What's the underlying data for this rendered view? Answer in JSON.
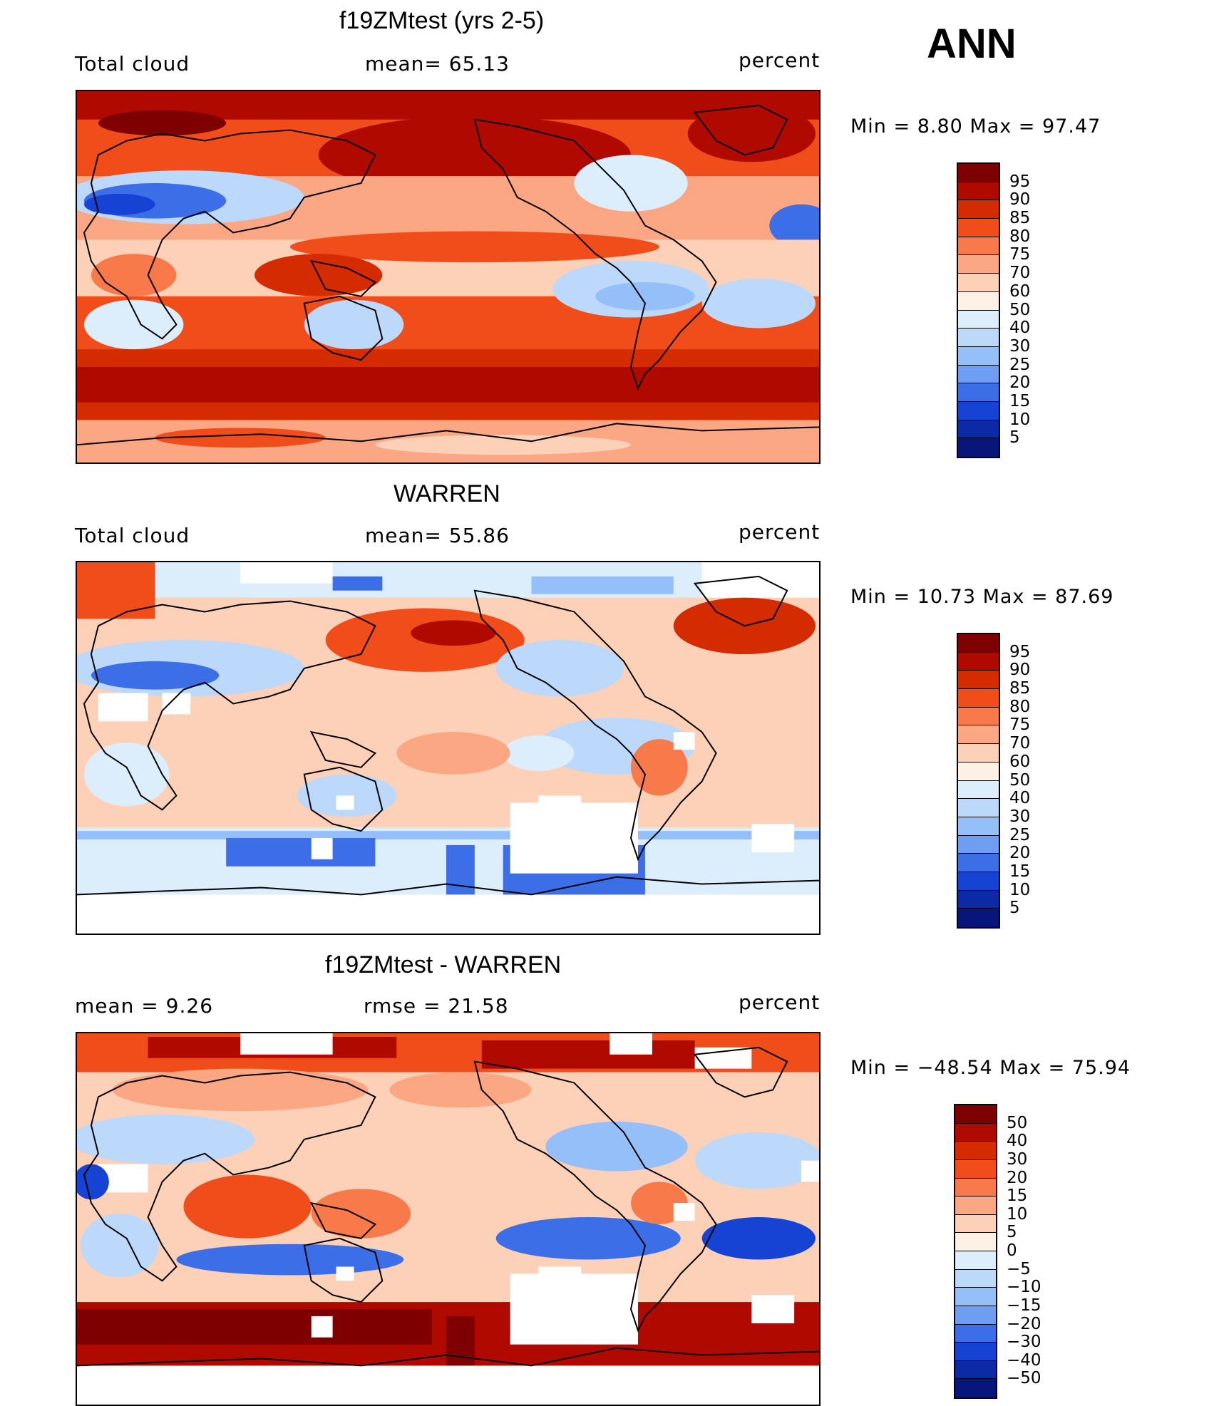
{
  "season": "ANN",
  "panels": [
    {
      "title": "f19ZMtest (yrs 2-5)",
      "left_label": "Total cloud",
      "center_label": "mean=   65.13",
      "units": "percent",
      "minmax": "Min =    8.80 Max =   97.47",
      "colorbar_labels": [
        "95",
        "90",
        "85",
        "80",
        "75",
        "70",
        "60",
        "50",
        "40",
        "30",
        "25",
        "20",
        "15",
        "10",
        "5"
      ],
      "colorbar_colors": [
        "#7f0000",
        "#b00a00",
        "#d42c00",
        "#f04d1a",
        "#f87a4a",
        "#fba783",
        "#fdd0b8",
        "#fdf0e4",
        "#dceefc",
        "#bcd8fb",
        "#95bff8",
        "#6e9ef2",
        "#3c6ee8",
        "#1643d3",
        "#0c2aa6",
        "#08157a"
      ]
    },
    {
      "title": "WARREN",
      "left_label": "Total cloud",
      "center_label": "mean=   55.86",
      "units": "percent",
      "minmax": "Min =   10.73 Max =   87.69",
      "colorbar_labels": [
        "95",
        "90",
        "85",
        "80",
        "75",
        "70",
        "60",
        "50",
        "40",
        "30",
        "25",
        "20",
        "15",
        "10",
        "5"
      ],
      "colorbar_colors": [
        "#7f0000",
        "#b00a00",
        "#d42c00",
        "#f04d1a",
        "#f87a4a",
        "#fba783",
        "#fdd0b8",
        "#fdf0e4",
        "#dceefc",
        "#bcd8fb",
        "#95bff8",
        "#6e9ef2",
        "#3c6ee8",
        "#1643d3",
        "#0c2aa6",
        "#08157a"
      ]
    },
    {
      "title": "f19ZMtest - WARREN",
      "left_label": "mean =     9.26",
      "center_label": "rmse =    21.58",
      "units": "percent",
      "minmax": "Min = −48.54 Max =   75.94",
      "colorbar_labels": [
        "50",
        "40",
        "30",
        "20",
        "15",
        "10",
        "5",
        "0",
        "−5",
        "−10",
        "−15",
        "−20",
        "−30",
        "−40",
        "−50"
      ],
      "colorbar_colors": [
        "#7f0000",
        "#b00a00",
        "#d42c00",
        "#f04d1a",
        "#f87a4a",
        "#fba783",
        "#fdd0b8",
        "#fdf0e4",
        "#dceefc",
        "#bcd8fb",
        "#95bff8",
        "#6e9ef2",
        "#3c6ee8",
        "#1643d3",
        "#0c2aa6",
        "#08157a"
      ]
    }
  ]
}
